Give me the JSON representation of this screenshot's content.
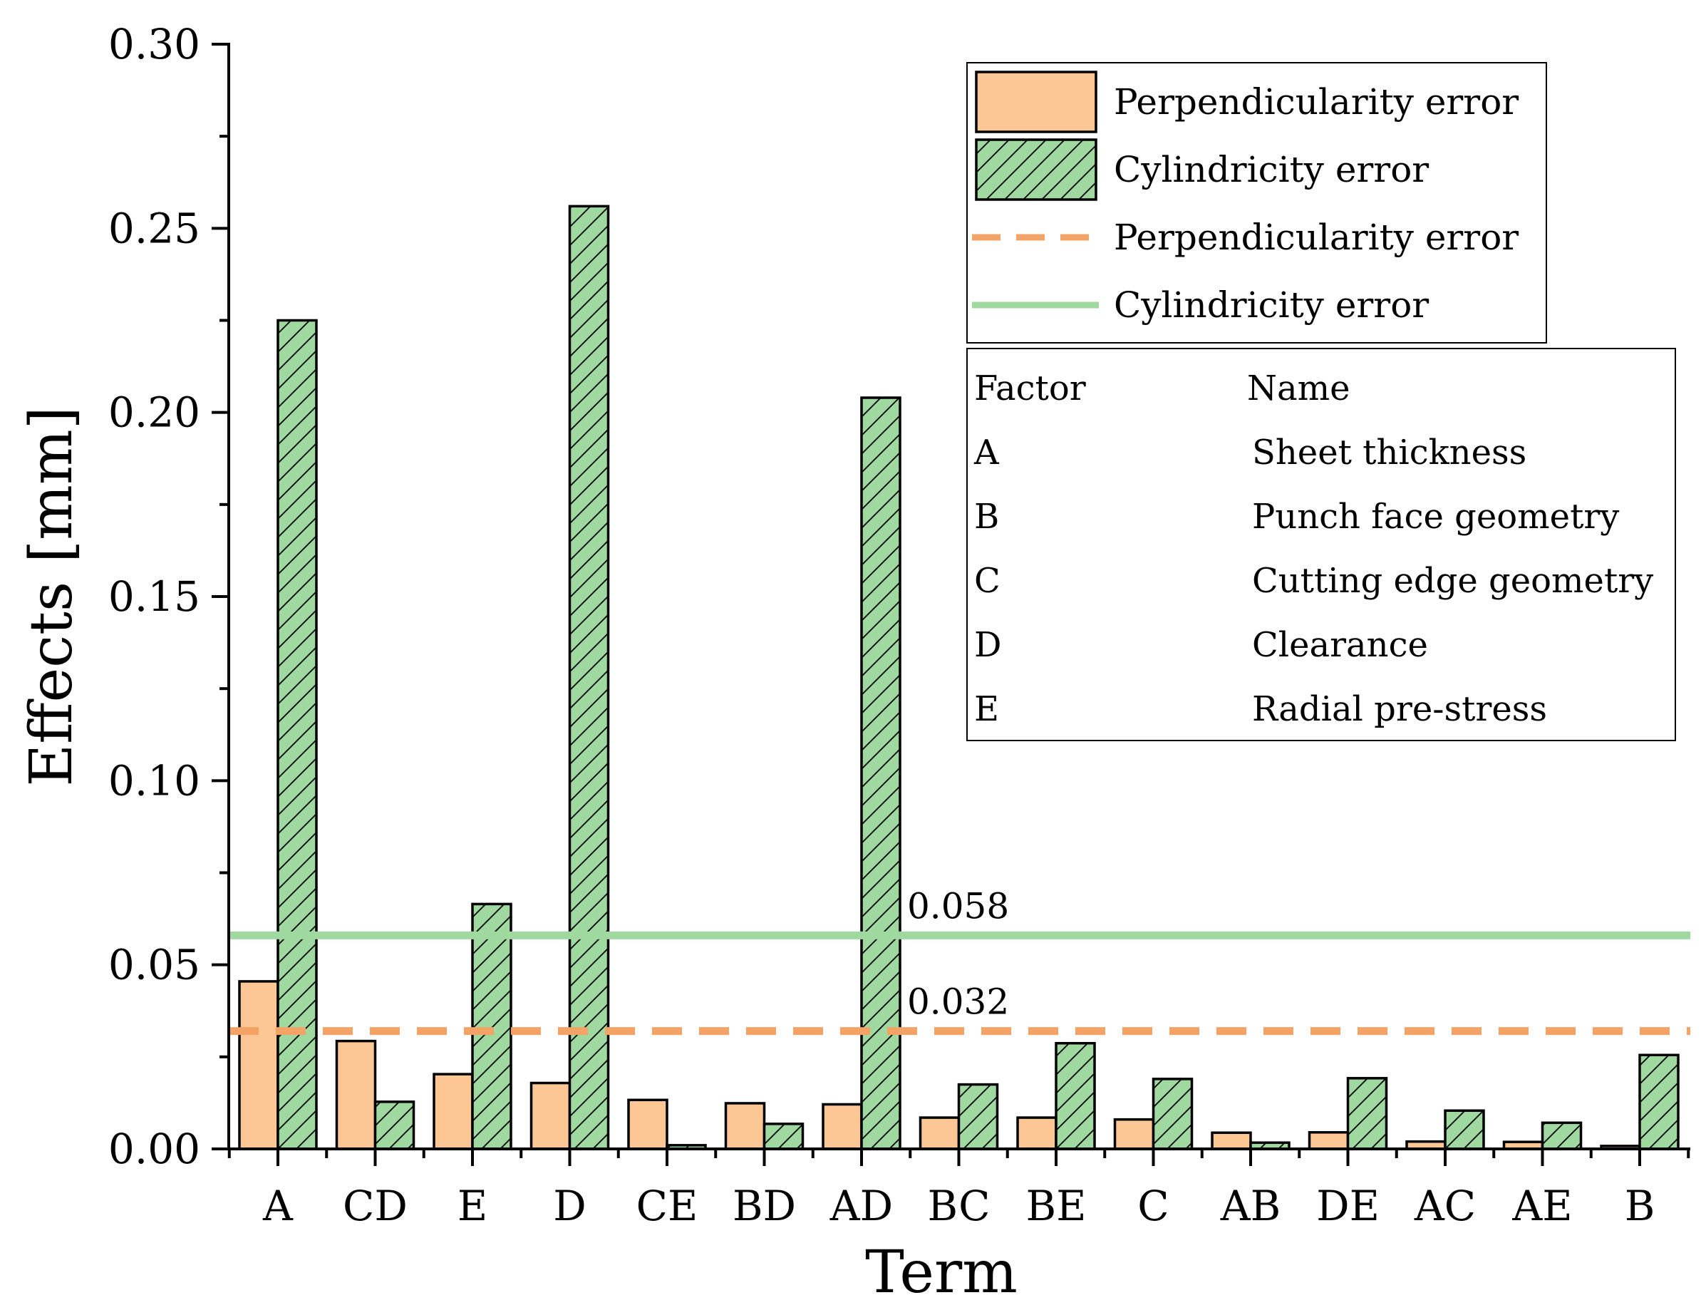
{
  "chart_data": {
    "type": "bar",
    "xlabel": "Term",
    "ylabel": "Effects [mm]",
    "ylim": [
      0,
      0.3
    ],
    "yticks": [
      "0.00",
      "0.05",
      "0.10",
      "0.15",
      "0.20",
      "0.25",
      "0.30"
    ],
    "categories": [
      "A",
      "CD",
      "E",
      "D",
      "CE",
      "BD",
      "AD",
      "BC",
      "BE",
      "C",
      "AB",
      "DE",
      "AC",
      "AE",
      "B"
    ],
    "series": [
      {
        "name": "Perpendicularity error",
        "color": "#FCC795",
        "pattern": "solid",
        "values": [
          0.0455,
          0.0293,
          0.0203,
          0.0179,
          0.0133,
          0.0124,
          0.0121,
          0.0085,
          0.0085,
          0.008,
          0.0044,
          0.0045,
          0.002,
          0.0019,
          0.0008
        ]
      },
      {
        "name": "Cylindricity error",
        "color": "#A0D9A0",
        "pattern": "hatch",
        "values": [
          0.225,
          0.0128,
          0.0665,
          0.256,
          0.001,
          0.0068,
          0.204,
          0.0175,
          0.0287,
          0.019,
          0.0017,
          0.0192,
          0.0104,
          0.0071,
          0.0255
        ]
      }
    ],
    "thresholds": [
      {
        "name": "Perpendicularity error",
        "value": 0.032,
        "label": "0.032",
        "color": "#F4A366",
        "style": "dashed"
      },
      {
        "name": "Cylindricity error",
        "value": 0.058,
        "label": "0.058",
        "color": "#A0D9A0",
        "style": "solid"
      }
    ],
    "legend": {
      "position": "top-right",
      "entries": [
        {
          "label": "Perpendicularity error",
          "kind": "bar",
          "series": 0
        },
        {
          "label": "Cylindricity error",
          "kind": "bar",
          "series": 1
        },
        {
          "label": "Perpendicularity error",
          "kind": "line",
          "threshold": 0
        },
        {
          "label": "Cylindricity error",
          "kind": "line",
          "threshold": 1
        }
      ]
    },
    "factor_table": {
      "headers": [
        "Factor",
        "Name"
      ],
      "rows": [
        {
          "factor": "A",
          "name": "Sheet thickness"
        },
        {
          "factor": "B",
          "name": "Punch face geometry"
        },
        {
          "factor": "C",
          "name": "Cutting edge geometry"
        },
        {
          "factor": "D",
          "name": "Clearance"
        },
        {
          "factor": "E",
          "name": "Radial pre-stress"
        }
      ]
    }
  }
}
